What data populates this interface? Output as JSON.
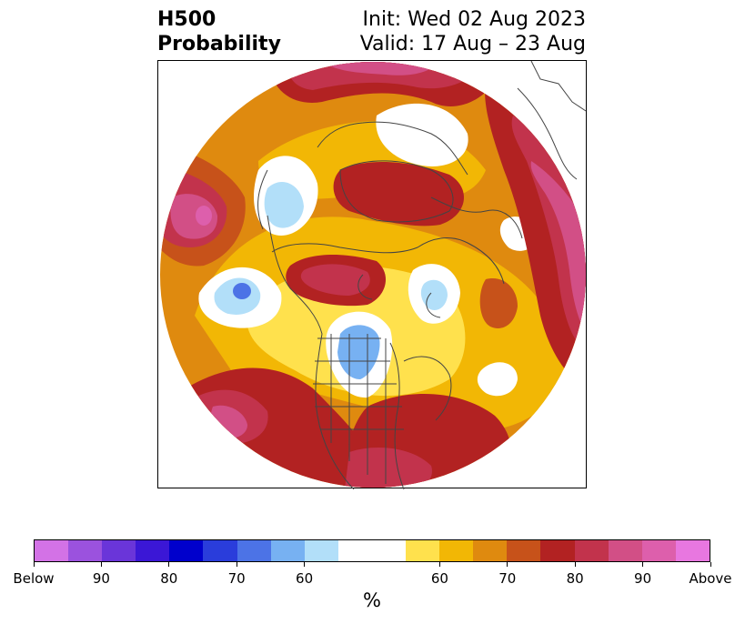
{
  "title": {
    "left_line1": "H500",
    "left_line2": "Probability",
    "right_line1": "Init: Wed 02 Aug 2023",
    "right_line2": "Valid: 17 Aug – 23 Aug"
  },
  "colorbar": {
    "unit": "%",
    "colors": [
      "#d372e6",
      "#9b52de",
      "#6a35d9",
      "#3b17d6",
      "#0000cc",
      "#2a3ddb",
      "#4c73e6",
      "#77b1f2",
      "#b2dff9",
      "#ffffff",
      "#ffe14d",
      "#f2b705",
      "#df8a0f",
      "#c7521a",
      "#b22222",
      "#c2334c",
      "#d24f86",
      "#dd5fac",
      "#e877e0"
    ],
    "labels": [
      "Below",
      "90",
      "80",
      "70",
      "60",
      "60",
      "70",
      "80",
      "90",
      "Above"
    ]
  },
  "map": {
    "projection": "north-polar-stereographic",
    "palette": {
      "white": "#ffffff",
      "yellow": "#ffe14d",
      "gold": "#f2b705",
      "orange": "#df8a0f",
      "rust": "#c7521a",
      "red": "#b22222",
      "crimson": "#c2334c",
      "rose": "#d24f86",
      "pink": "#dd5fac",
      "lightblue": "#b2dff9",
      "skyblue": "#77b1f2",
      "blue": "#4c73e6",
      "coast": "#444444"
    }
  }
}
